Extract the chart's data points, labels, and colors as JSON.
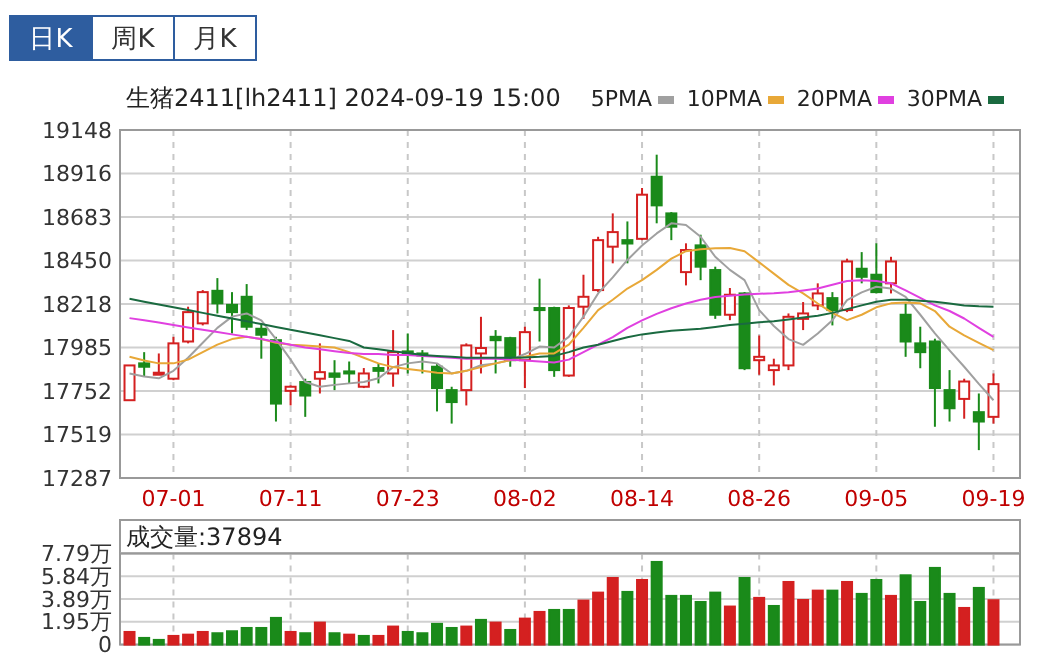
{
  "chart_data": [
    {
      "type": "candlestick",
      "title": "生猪2411[lh2411] 2024-09-19 15:00",
      "annotations": [
        "日K",
        "周K",
        "月K"
      ],
      "categories": [
        null,
        null,
        null,
        "07-01",
        null,
        null,
        null,
        null,
        null,
        null,
        null,
        "07-11",
        null,
        null,
        null,
        null,
        null,
        null,
        null,
        "07-23",
        null,
        null,
        null,
        null,
        null,
        null,
        null,
        "08-02",
        null,
        null,
        null,
        null,
        null,
        null,
        null,
        "08-14",
        null,
        null,
        null,
        null,
        null,
        null,
        null,
        "08-26",
        null,
        null,
        null,
        null,
        null,
        null,
        null,
        "09-05",
        null,
        null,
        null,
        null,
        null,
        null,
        null,
        "09-19"
      ],
      "ohlc": [
        [
          17703,
          17889,
          17700,
          17889
        ],
        [
          17900,
          17960,
          17828,
          17882
        ],
        [
          17846,
          17953,
          17840,
          17850
        ],
        [
          17818,
          18042,
          17810,
          18007
        ],
        [
          18017,
          18203,
          18007,
          18174
        ],
        [
          18114,
          18292,
          18103,
          18281
        ],
        [
          18288,
          18356,
          18167,
          18221
        ],
        [
          18213,
          18281,
          18060,
          18174
        ],
        [
          18256,
          18324,
          18078,
          18096
        ],
        [
          18085,
          18114,
          17925,
          18053
        ],
        [
          18024,
          18042,
          17589,
          17685
        ],
        [
          17753,
          17782,
          17675,
          17775
        ],
        [
          17800,
          17818,
          17614,
          17728
        ],
        [
          17818,
          18007,
          17739,
          17853
        ],
        [
          17846,
          17917,
          17757,
          17828
        ],
        [
          17857,
          17910,
          17793,
          17846
        ],
        [
          17775,
          17875,
          17768,
          17846
        ],
        [
          17875,
          17900,
          17793,
          17860
        ],
        [
          17846,
          18078,
          17775,
          17960
        ],
        [
          17964,
          18060,
          17846,
          17946
        ],
        [
          17953,
          17971,
          17846,
          17946
        ],
        [
          17882,
          17900,
          17643,
          17768
        ],
        [
          17757,
          17775,
          17578,
          17693
        ],
        [
          17757,
          18007,
          17675,
          17996
        ],
        [
          17953,
          18149,
          17846,
          17982
        ],
        [
          18042,
          18078,
          17846,
          18024
        ],
        [
          18035,
          18042,
          17882,
          17917
        ],
        [
          17917,
          18096,
          17768,
          18067
        ],
        [
          18196,
          18353,
          18017,
          18185
        ],
        [
          18196,
          18203,
          17828,
          17864
        ],
        [
          17835,
          18210,
          17828,
          18196
        ],
        [
          18203,
          18374,
          18138,
          18256
        ],
        [
          18292,
          18577,
          18281,
          18559
        ],
        [
          18524,
          18702,
          18435,
          18602
        ],
        [
          18559,
          18659,
          18435,
          18541
        ],
        [
          18566,
          18838,
          18559,
          18802
        ],
        [
          18898,
          19016,
          18649,
          18745
        ],
        [
          18702,
          18709,
          18559,
          18631
        ],
        [
          18388,
          18542,
          18317,
          18506
        ],
        [
          18531,
          18588,
          18345,
          18417
        ],
        [
          18399,
          18417,
          18138,
          18160
        ],
        [
          18160,
          18303,
          18131,
          18267
        ],
        [
          18274,
          18281,
          17864,
          17874
        ],
        [
          17917,
          18049,
          17839,
          17935
        ],
        [
          17864,
          17925,
          17782,
          17889
        ],
        [
          17889,
          18167,
          17864,
          18149
        ],
        [
          18138,
          18228,
          18078,
          18167
        ],
        [
          18210,
          18328,
          18185,
          18274
        ],
        [
          18249,
          18281,
          18103,
          18185
        ],
        [
          18185,
          18460,
          18174,
          18445
        ],
        [
          18406,
          18495,
          18328,
          18363
        ],
        [
          18374,
          18542,
          18274,
          18281
        ],
        [
          18328,
          18470,
          18274,
          18445
        ],
        [
          18160,
          18221,
          17935,
          18017
        ],
        [
          18007,
          18096,
          17874,
          17960
        ],
        [
          18017,
          18032,
          17561,
          17768
        ],
        [
          17757,
          17864,
          17589,
          17660
        ],
        [
          17710,
          17818,
          17604,
          17803
        ],
        [
          17639,
          17739,
          17436,
          17589
        ],
        [
          17614,
          17846,
          17578,
          17789
        ]
      ],
      "series": [
        {
          "name": "5PMA",
          "type": "line",
          "color": "#a0a0a0",
          "values": [
            17846,
            17830,
            17820,
            17860,
            17930,
            18010,
            18090,
            18150,
            18167,
            18130,
            18030,
            17920,
            17800,
            17775,
            17785,
            17793,
            17800,
            17820,
            17880,
            17900,
            17910,
            17900,
            17846,
            17860,
            17890,
            17900,
            17917,
            17950,
            17990,
            17985,
            18042,
            18150,
            18274,
            18360,
            18453,
            18530,
            18595,
            18649,
            18640,
            18577,
            18470,
            18400,
            18345,
            18185,
            18100,
            18030,
            17999,
            18060,
            18131,
            18238,
            18280,
            18310,
            18300,
            18256,
            18160,
            18060,
            17970,
            17882,
            17790,
            17703
          ]
        },
        {
          "name": "10PMA",
          "type": "line",
          "color": "#e8a838",
          "values": [
            17935,
            17915,
            17900,
            17900,
            17920,
            17960,
            18000,
            18030,
            18042,
            18030,
            18010,
            18000,
            17995,
            17990,
            17985,
            17960,
            17930,
            17900,
            17880,
            17870,
            17860,
            17850,
            17846,
            17860,
            17880,
            17900,
            17917,
            17935,
            17953,
            17953,
            18000,
            18090,
            18185,
            18240,
            18300,
            18345,
            18400,
            18460,
            18500,
            18510,
            18515,
            18517,
            18500,
            18440,
            18380,
            18320,
            18274,
            18220,
            18170,
            18131,
            18160,
            18200,
            18221,
            18225,
            18221,
            18180,
            18096,
            18050,
            18010,
            17971
          ]
        },
        {
          "name": "20PMA",
          "type": "line",
          "color": "#e040e0",
          "values": [
            18142,
            18130,
            18118,
            18105,
            18092,
            18080,
            18068,
            18055,
            18042,
            18030,
            18015,
            18000,
            17985,
            17975,
            17965,
            17955,
            17950,
            17950,
            17945,
            17945,
            17940,
            17935,
            17930,
            17925,
            17925,
            17925,
            17920,
            17915,
            17910,
            17905,
            17920,
            17960,
            18000,
            18040,
            18090,
            18130,
            18165,
            18195,
            18220,
            18240,
            18255,
            18262,
            18268,
            18272,
            18275,
            18280,
            18290,
            18300,
            18320,
            18340,
            18345,
            18340,
            18328,
            18290,
            18250,
            18210,
            18180,
            18140,
            18090,
            18042
          ]
        },
        {
          "name": "30PMA",
          "type": "line",
          "color": "#1a6a40",
          "values": [
            18246,
            18230,
            18215,
            18200,
            18185,
            18170,
            18155,
            18140,
            18125,
            18110,
            18095,
            18080,
            18065,
            18050,
            18035,
            18020,
            17985,
            17975,
            17965,
            17955,
            17945,
            17940,
            17935,
            17930,
            17930,
            17930,
            17930,
            17932,
            17935,
            17940,
            17960,
            17985,
            18000,
            18020,
            18040,
            18055,
            18065,
            18075,
            18080,
            18085,
            18095,
            18105,
            18112,
            18120,
            18125,
            18135,
            18145,
            18155,
            18170,
            18190,
            18210,
            18230,
            18240,
            18240,
            18235,
            18230,
            18220,
            18210,
            18205,
            18203
          ]
        }
      ],
      "ylim": [
        17287,
        19148
      ],
      "yticks": [
        17287,
        17519,
        17752,
        17985,
        18218,
        18450,
        18683,
        18916,
        19148
      ],
      "grid": true,
      "legend": "top right"
    },
    {
      "type": "bar",
      "title": "成交量:37894",
      "tick_labels": "y",
      "grid": true,
      "categories": [
        null,
        null,
        null,
        null,
        null,
        null,
        null,
        null,
        null,
        null,
        null,
        null,
        null,
        null,
        null,
        null,
        null,
        null,
        null,
        null,
        null,
        null,
        null,
        null,
        null,
        null,
        null,
        null,
        null,
        null,
        null,
        null,
        null,
        null,
        null,
        null,
        null,
        null,
        null,
        null,
        null,
        null,
        null,
        null,
        null,
        null,
        null,
        null,
        null,
        null,
        null,
        null,
        null,
        null,
        null,
        null,
        null,
        null,
        null,
        null
      ],
      "values": [
        1.08,
        0.57,
        0.4,
        0.74,
        0.85,
        1.08,
        0.97,
        1.14,
        1.42,
        1.42,
        2.28,
        1.08,
        0.97,
        1.88,
        0.97,
        0.85,
        0.74,
        0.74,
        1.54,
        1.08,
        0.97,
        1.77,
        1.42,
        1.54,
        2.11,
        1.88,
        1.25,
        2.22,
        2.79,
        2.96,
        2.96,
        3.76,
        4.44,
        5.69,
        4.5,
        5.52,
        7.06,
        4.16,
        4.16,
        3.64,
        4.44,
        3.25,
        5.69,
        3.99,
        3.3,
        5.35,
        3.81,
        4.61,
        4.61,
        5.35,
        4.33,
        5.52,
        4.16,
        5.92,
        3.64,
        6.55,
        4.33,
        3.13,
        4.84,
        3.79
      ],
      "colors": [
        "#d42020",
        "#1a8a1a",
        "#1a8a1a",
        "#d42020",
        "#d42020",
        "#d42020",
        "#1a8a1a",
        "#1a8a1a",
        "#1a8a1a",
        "#1a8a1a",
        "#1a8a1a",
        "#d42020",
        "#1a8a1a",
        "#d42020",
        "#1a8a1a",
        "#d42020",
        "#1a8a1a",
        "#d42020",
        "#d42020",
        "#1a8a1a",
        "#1a8a1a",
        "#1a8a1a",
        "#1a8a1a",
        "#d42020",
        "#1a8a1a",
        "#d42020",
        "#1a8a1a",
        "#d42020",
        "#d42020",
        "#1a8a1a",
        "#1a8a1a",
        "#d42020",
        "#d42020",
        "#d42020",
        "#1a8a1a",
        "#d42020",
        "#1a8a1a",
        "#1a8a1a",
        "#1a8a1a",
        "#1a8a1a",
        "#1a8a1a",
        "#d42020",
        "#1a8a1a",
        "#d42020",
        "#1a8a1a",
        "#d42020",
        "#d42020",
        "#d42020",
        "#1a8a1a",
        "#d42020",
        "#1a8a1a",
        "#1a8a1a",
        "#d42020",
        "#1a8a1a",
        "#1a8a1a",
        "#1a8a1a",
        "#1a8a1a",
        "#d42020",
        "#1a8a1a",
        "#d42020"
      ],
      "ylim": [
        0,
        7.79
      ],
      "yticks": [
        0,
        {
          "value": 1.95,
          "label": "1.95万"
        },
        {
          "value": 3.89,
          "label": "3.89万"
        },
        {
          "value": 5.84,
          "label": "5.84万"
        },
        {
          "value": 7.79,
          "label": "7.79万"
        }
      ]
    }
  ]
}
